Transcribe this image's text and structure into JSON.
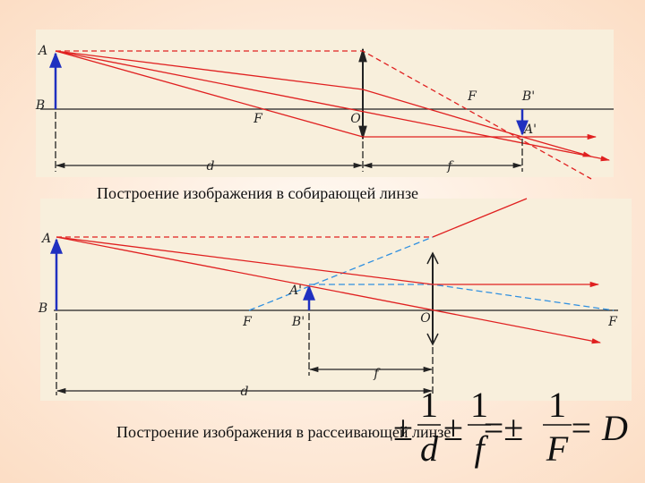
{
  "diagrams": [
    {
      "caption": "Построение изображения в собирающей линзе",
      "labels": [
        "A",
        "B",
        "F",
        "O",
        "F",
        "B'",
        "A'",
        "d",
        "f"
      ]
    },
    {
      "caption": "Построение изображения в рассеивающей линзе",
      "labels": [
        "A",
        "A'",
        "B",
        "F",
        "B'",
        "O",
        "F",
        "f",
        "d"
      ]
    }
  ],
  "formula": {
    "parts": [
      "±",
      "1",
      "d",
      "±",
      "1",
      "f",
      "=±",
      "1",
      "F",
      "= D"
    ]
  }
}
